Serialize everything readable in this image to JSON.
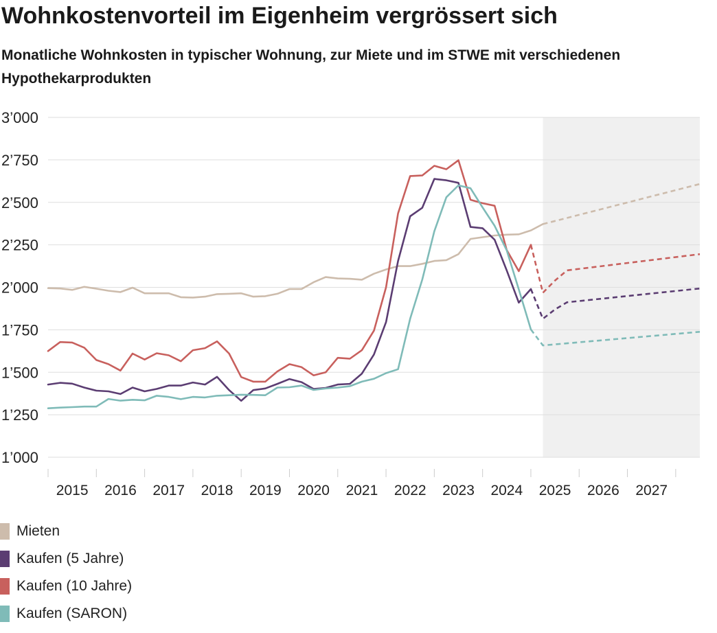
{
  "title": "Wohnkostenvorteil im Eigenheim vergrössert sich",
  "subtitle": "Monatliche Wohnkosten in typischer Wohnung, zur Miete und im STWE mit verschiedenen Hypothekarprodukten",
  "chart_data": {
    "type": "line",
    "title": "Wohnkostenvorteil im Eigenheim vergrössert sich",
    "subtitle": "Monatliche Wohnkosten in typischer Wohnung, zur Miete und im STWE mit verschiedenen Hypothekarprodukten",
    "x_range": [
      2014.5,
      2028.0
    ],
    "ylim": [
      1000,
      3000
    ],
    "y_ticks": [
      1000,
      1250,
      1500,
      1750,
      2000,
      2250,
      2500,
      2750,
      3000
    ],
    "y_tick_labels": [
      "1’000",
      "1’250",
      "1’500",
      "1’750",
      "2’000",
      "2’250",
      "2’500",
      "2’750",
      "3’000"
    ],
    "x_tick_labels": [
      {
        "x": 2015.0,
        "label": "2015"
      },
      {
        "x": 2016.0,
        "label": "2016"
      },
      {
        "x": 2017.0,
        "label": "2017"
      },
      {
        "x": 2018.0,
        "label": "2018"
      },
      {
        "x": 2019.0,
        "label": "2019"
      },
      {
        "x": 2020.0,
        "label": "2020"
      },
      {
        "x": 2021.0,
        "label": "2021"
      },
      {
        "x": 2022.0,
        "label": "2022"
      },
      {
        "x": 2023.0,
        "label": "2023"
      },
      {
        "x": 2024.0,
        "label": "2024"
      },
      {
        "x": 2025.0,
        "label": "2025"
      },
      {
        "x": 2026.0,
        "label": "2026"
      },
      {
        "x": 2027.0,
        "label": "2027"
      }
    ],
    "forecast_region": [
      2024.75,
      2028.0
    ],
    "grid": true,
    "legend_position": "bottom-left",
    "series": [
      {
        "name": "Mieten",
        "color": "#cdbcac",
        "x": [
          2014.5,
          2014.75,
          2015.0,
          2015.25,
          2015.5,
          2015.75,
          2016.0,
          2016.25,
          2016.5,
          2016.75,
          2017.0,
          2017.25,
          2017.5,
          2017.75,
          2018.0,
          2018.25,
          2018.5,
          2018.75,
          2019.0,
          2019.25,
          2019.5,
          2019.75,
          2020.0,
          2020.25,
          2020.5,
          2020.75,
          2021.0,
          2021.25,
          2021.5,
          2021.75,
          2022.0,
          2022.25,
          2022.5,
          2022.75,
          2023.0,
          2023.25,
          2023.5,
          2023.75,
          2024.0,
          2024.25,
          2024.5,
          2024.75
        ],
        "y": [
          1995,
          1993,
          1985,
          2003,
          1992,
          1980,
          1972,
          1998,
          1965,
          1965,
          1965,
          1942,
          1940,
          1945,
          1960,
          1962,
          1965,
          1945,
          1948,
          1962,
          1990,
          1990,
          2030,
          2060,
          2052,
          2050,
          2045,
          2080,
          2105,
          2125,
          2125,
          2138,
          2155,
          2160,
          2195,
          2285,
          2295,
          2305,
          2310,
          2312,
          2335,
          2372
        ],
        "forecast_x": [
          2024.75,
          2028.0
        ],
        "forecast_y": [
          2372,
          2608
        ]
      },
      {
        "name": "Kaufen (5 Jahre)",
        "color": "#5b3d72",
        "x": [
          2014.5,
          2014.75,
          2015.0,
          2015.25,
          2015.5,
          2015.75,
          2016.0,
          2016.25,
          2016.5,
          2016.75,
          2017.0,
          2017.25,
          2017.5,
          2017.75,
          2018.0,
          2018.25,
          2018.5,
          2018.75,
          2019.0,
          2019.25,
          2019.5,
          2019.75,
          2020.0,
          2020.25,
          2020.5,
          2020.75,
          2021.0,
          2021.25,
          2021.5,
          2021.75,
          2022.0,
          2022.25,
          2022.5,
          2022.75,
          2023.0,
          2023.25,
          2023.5,
          2023.75,
          2024.0,
          2024.25,
          2024.5,
          2024.75
        ],
        "y": [
          1428,
          1438,
          1433,
          1410,
          1392,
          1388,
          1372,
          1410,
          1388,
          1402,
          1422,
          1422,
          1440,
          1428,
          1473,
          1395,
          1332,
          1395,
          1405,
          1432,
          1460,
          1442,
          1402,
          1408,
          1428,
          1432,
          1492,
          1605,
          1795,
          2155,
          2418,
          2468,
          2638,
          2630,
          2615,
          2355,
          2348,
          2280,
          2100,
          1910,
          1990,
          null
        ],
        "forecast_x": [
          2024.5,
          2024.75,
          2025.0,
          2025.25,
          2028.0
        ],
        "forecast_y": [
          1990,
          1815,
          1870,
          1912,
          1993
        ]
      },
      {
        "name": "Kaufen (10 Jahre)",
        "color": "#c8605d",
        "x": [
          2014.5,
          2014.75,
          2015.0,
          2015.25,
          2015.5,
          2015.75,
          2016.0,
          2016.25,
          2016.5,
          2016.75,
          2017.0,
          2017.25,
          2017.5,
          2017.75,
          2018.0,
          2018.25,
          2018.5,
          2018.75,
          2019.0,
          2019.25,
          2019.5,
          2019.75,
          2020.0,
          2020.25,
          2020.5,
          2020.75,
          2021.0,
          2021.25,
          2021.5,
          2021.75,
          2022.0,
          2022.25,
          2022.5,
          2022.75,
          2023.0,
          2023.25,
          2023.5,
          2023.75,
          2024.0,
          2024.25,
          2024.5,
          2024.75
        ],
        "y": [
          1625,
          1678,
          1675,
          1645,
          1572,
          1548,
          1510,
          1610,
          1575,
          1612,
          1600,
          1565,
          1630,
          1642,
          1682,
          1610,
          1472,
          1445,
          1445,
          1505,
          1548,
          1530,
          1482,
          1500,
          1585,
          1580,
          1630,
          1745,
          2000,
          2435,
          2655,
          2658,
          2715,
          2695,
          2748,
          2515,
          2495,
          2480,
          2220,
          2095,
          2250,
          null
        ],
        "forecast_x": [
          2024.5,
          2024.75,
          2025.0,
          2025.25,
          2028.0
        ],
        "forecast_y": [
          2250,
          1968,
          2040,
          2100,
          2195
        ]
      },
      {
        "name": "Kaufen (SARON)",
        "color": "#7fbbb8",
        "x": [
          2014.5,
          2014.75,
          2015.0,
          2015.25,
          2015.5,
          2015.75,
          2016.0,
          2016.25,
          2016.5,
          2016.75,
          2017.0,
          2017.25,
          2017.5,
          2017.75,
          2018.0,
          2018.25,
          2018.5,
          2018.75,
          2019.0,
          2019.25,
          2019.5,
          2019.75,
          2020.0,
          2020.25,
          2020.5,
          2020.75,
          2021.0,
          2021.25,
          2021.5,
          2021.75,
          2022.0,
          2022.25,
          2022.5,
          2022.75,
          2023.0,
          2023.25,
          2023.5,
          2023.75,
          2024.0,
          2024.25,
          2024.5,
          2024.75
        ],
        "y": [
          1288,
          1292,
          1295,
          1298,
          1298,
          1343,
          1333,
          1338,
          1335,
          1362,
          1355,
          1342,
          1355,
          1352,
          1362,
          1365,
          1368,
          1367,
          1365,
          1410,
          1412,
          1422,
          1396,
          1405,
          1410,
          1418,
          1445,
          1462,
          1495,
          1518,
          1815,
          2045,
          2330,
          2530,
          2600,
          2583,
          2470,
          2362,
          2218,
          1988,
          1752,
          null
        ],
        "forecast_x": [
          2024.5,
          2024.75,
          2028.0
        ],
        "forecast_y": [
          1752,
          1658,
          1738
        ]
      }
    ]
  }
}
